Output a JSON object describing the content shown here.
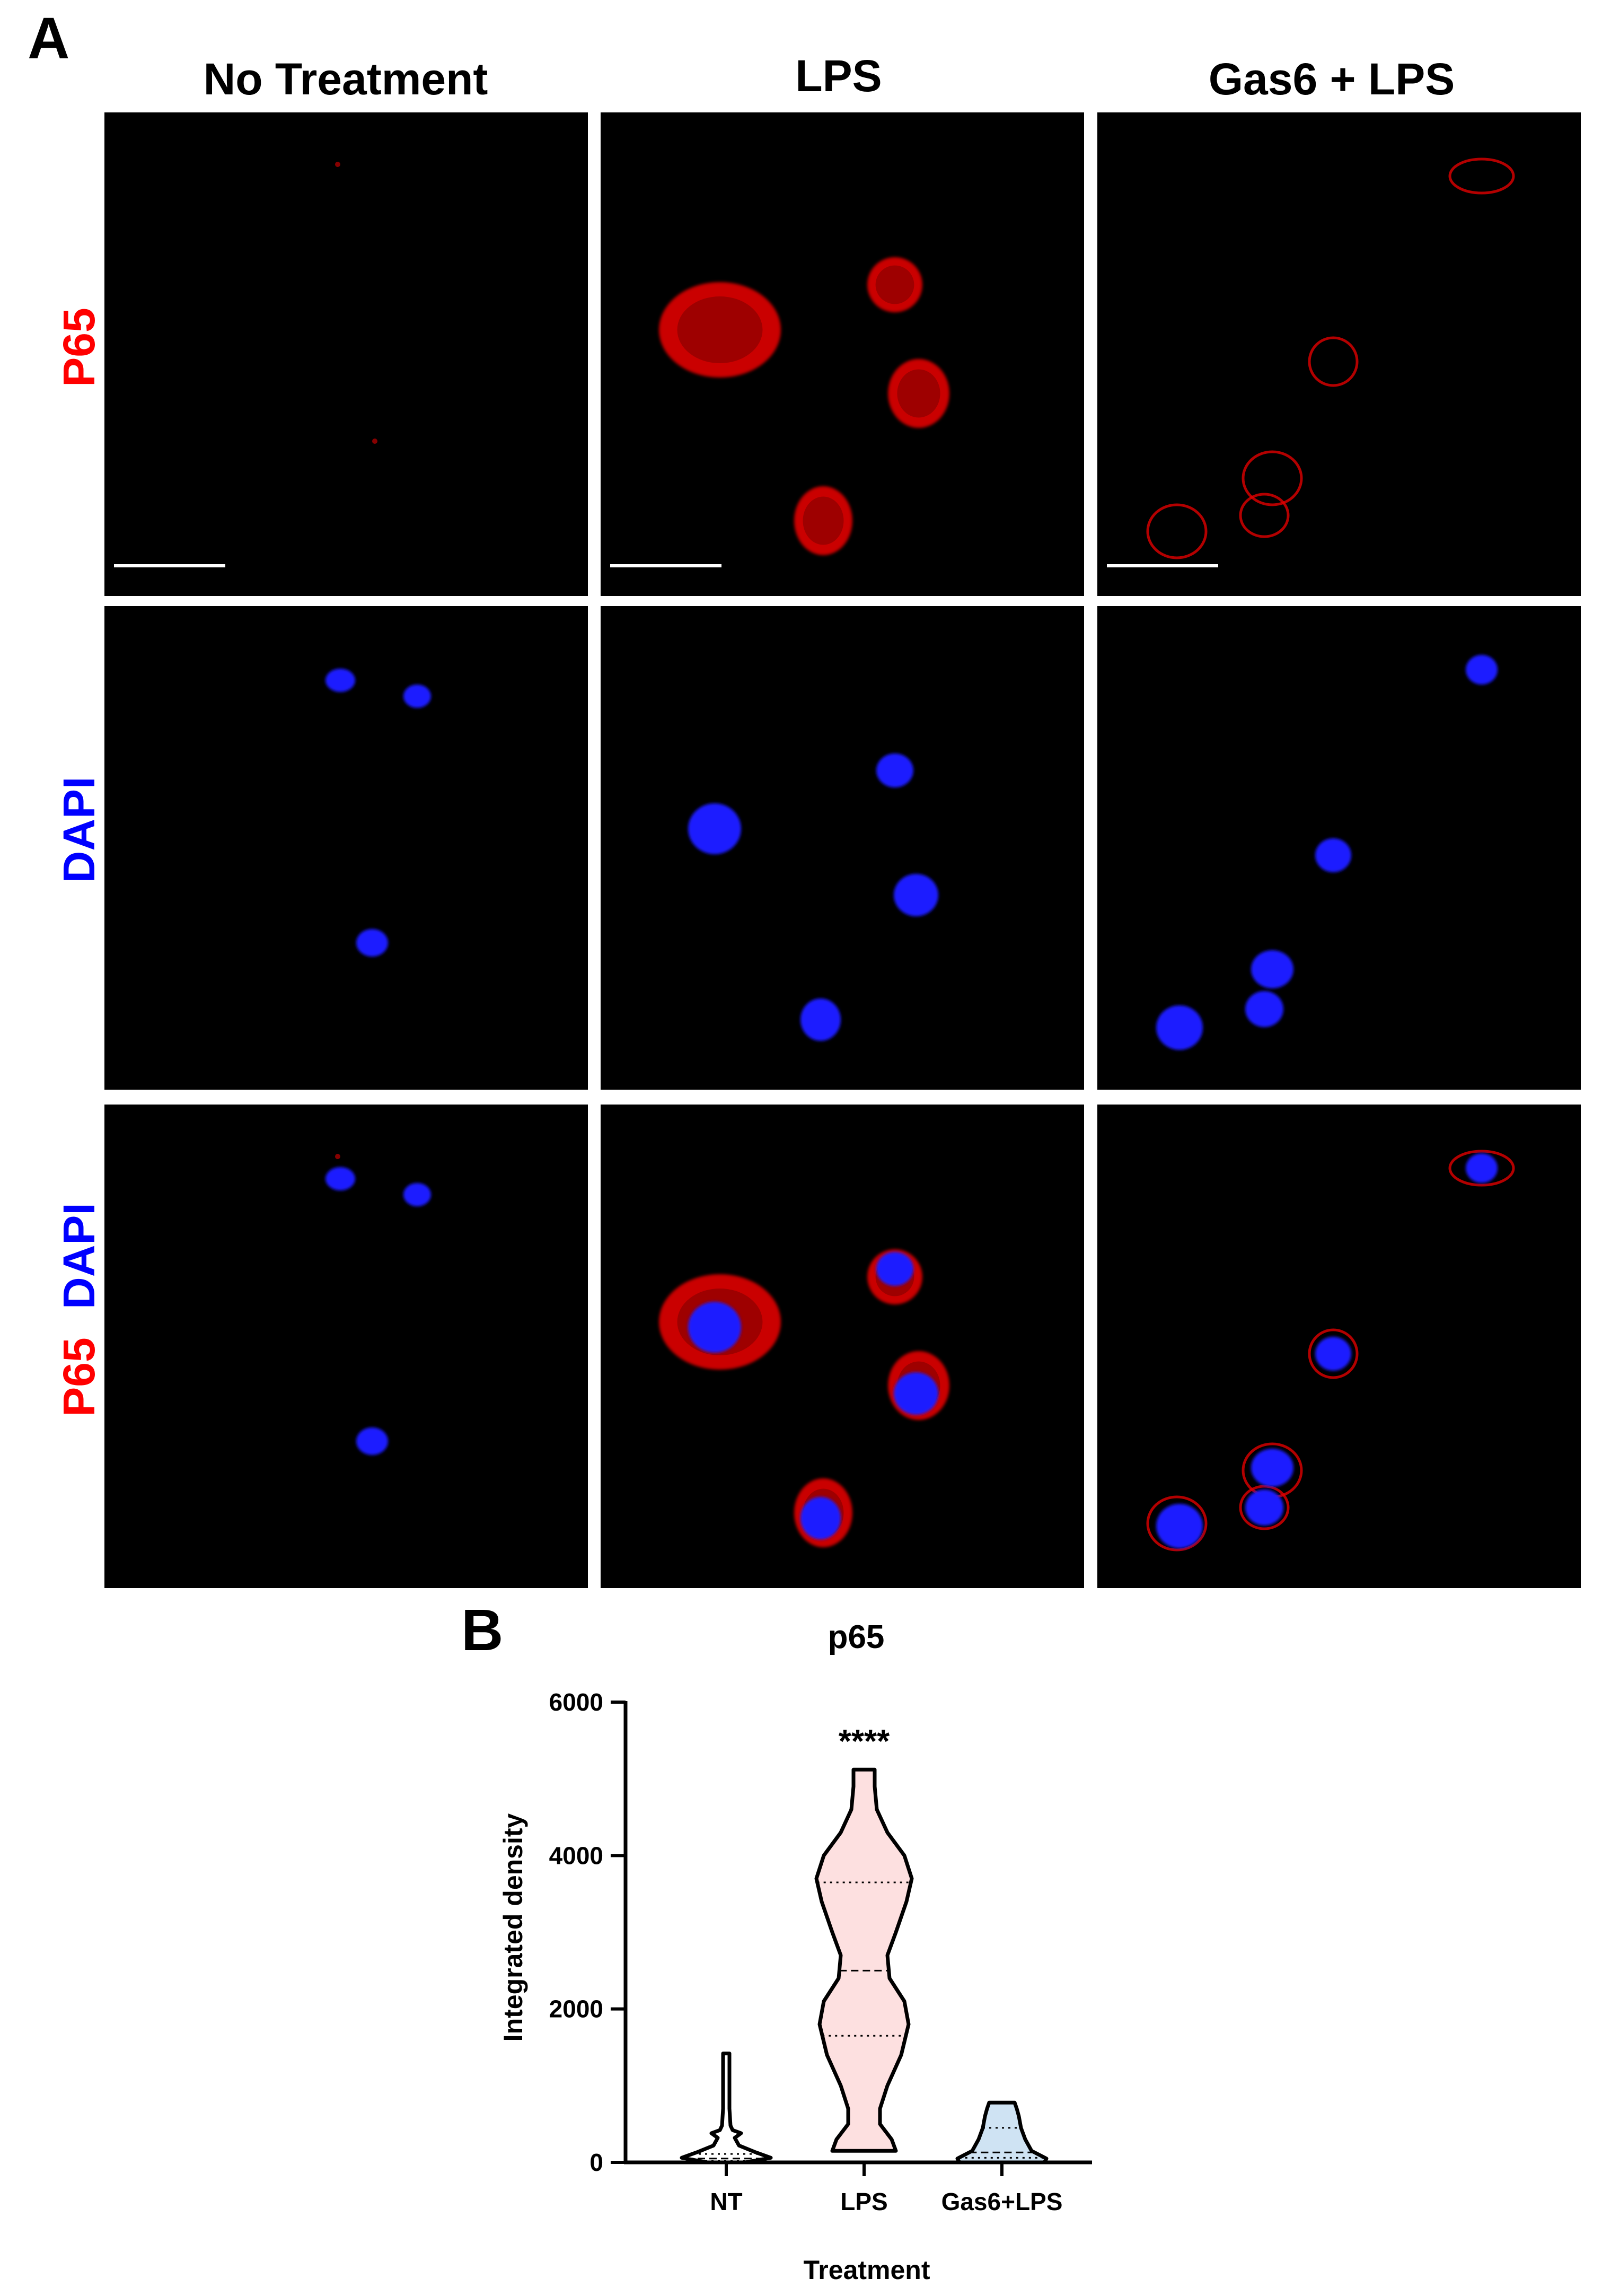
{
  "panel_a": {
    "letter": "A",
    "columns": [
      "No Treatment",
      "LPS",
      "Gas6 + LPS"
    ],
    "rows": [
      {
        "parts": [
          {
            "text": "P65",
            "color": "#ff0000"
          }
        ]
      },
      {
        "parts": [
          {
            "text": "DAPI",
            "color": "#0000ff"
          }
        ]
      },
      {
        "parts": [
          {
            "text": "P65",
            "color": "#ff0000"
          },
          {
            "text": "DAPI",
            "color": "#0000ff"
          }
        ]
      }
    ],
    "colors": {
      "p65": "#e00000",
      "dapi": "#1a1aff",
      "background": "#000000"
    }
  },
  "panel_b": {
    "letter": "B"
  },
  "chart_data": {
    "type": "violin",
    "title": "p65",
    "xlabel": "Treatment",
    "ylabel": "Integrated density",
    "ylim": [
      0,
      6000
    ],
    "yticks": [
      0,
      2000,
      4000,
      6000
    ],
    "categories": [
      "NT",
      "LPS",
      "Gas6+LPS"
    ],
    "series": [
      {
        "category": "NT",
        "fill": "#ffffff",
        "min": 0,
        "max": 1420,
        "median": 50,
        "q1": 20,
        "q3": 110,
        "profile": [
          [
            0,
            18
          ],
          [
            60,
            42
          ],
          [
            130,
            28
          ],
          [
            220,
            12
          ],
          [
            320,
            8
          ],
          [
            380,
            14
          ],
          [
            420,
            6
          ],
          [
            480,
            4
          ],
          [
            700,
            3
          ],
          [
            1000,
            3
          ],
          [
            1420,
            3
          ]
        ]
      },
      {
        "category": "LPS",
        "fill": "#fde0e0",
        "significance": "****",
        "min": 150,
        "max": 5120,
        "median": 2500,
        "q1": 1650,
        "q3": 3650,
        "profile": [
          [
            150,
            30
          ],
          [
            300,
            26
          ],
          [
            500,
            15
          ],
          [
            700,
            15
          ],
          [
            1000,
            22
          ],
          [
            1400,
            35
          ],
          [
            1800,
            42
          ],
          [
            2100,
            38
          ],
          [
            2400,
            24
          ],
          [
            2700,
            22
          ],
          [
            3000,
            30
          ],
          [
            3400,
            40
          ],
          [
            3700,
            45
          ],
          [
            4000,
            38
          ],
          [
            4300,
            22
          ],
          [
            4600,
            12
          ],
          [
            4900,
            10
          ],
          [
            5120,
            10
          ]
        ]
      },
      {
        "category": "Gas6+LPS",
        "fill": "#cfe3f3",
        "min": 0,
        "max": 780,
        "median": 130,
        "q1": 60,
        "q3": 450,
        "profile": [
          [
            0,
            40
          ],
          [
            50,
            42
          ],
          [
            150,
            28
          ],
          [
            300,
            22
          ],
          [
            450,
            18
          ],
          [
            600,
            16
          ],
          [
            700,
            14
          ],
          [
            780,
            12
          ]
        ]
      }
    ]
  }
}
